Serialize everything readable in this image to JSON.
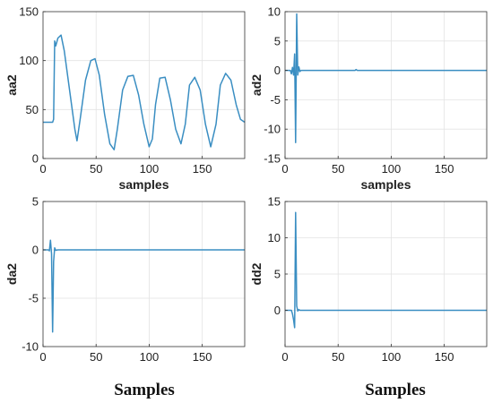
{
  "chart_data": [
    {
      "type": "line",
      "xlabel": "samples",
      "ylabel": "aa2",
      "xlim": [
        0,
        190
      ],
      "ylim": [
        0,
        150
      ],
      "xticks": [
        0,
        50,
        100,
        150
      ],
      "yticks": [
        0,
        50,
        100,
        150
      ],
      "grid": true,
      "color": "#3a8ec2",
      "x": [
        0,
        9,
        10,
        11,
        12,
        14,
        17,
        20,
        25,
        30,
        32,
        35,
        40,
        45,
        49,
        53,
        58,
        63,
        67,
        70,
        75,
        80,
        85,
        90,
        95,
        100,
        103,
        106,
        110,
        115,
        120,
        125,
        130,
        134,
        138,
        143,
        148,
        153,
        158,
        163,
        167,
        172,
        177,
        182,
        186,
        190
      ],
      "y": [
        37,
        37,
        40,
        120,
        115,
        123,
        126,
        110,
        70,
        30,
        18,
        40,
        80,
        100,
        102,
        85,
        45,
        15,
        9,
        30,
        70,
        84,
        85,
        65,
        35,
        12,
        20,
        55,
        82,
        83,
        60,
        30,
        15,
        35,
        75,
        83,
        70,
        35,
        12,
        35,
        75,
        87,
        80,
        55,
        40,
        37
      ]
    },
    {
      "type": "line",
      "xlabel": "samples",
      "ylabel": "ad2",
      "xlim": [
        0,
        190
      ],
      "ylim": [
        -15,
        10
      ],
      "xticks": [
        0,
        50,
        100,
        150
      ],
      "yticks": [
        -15,
        -10,
        -5,
        0,
        5,
        10
      ],
      "grid": true,
      "color": "#3a8ec2",
      "x": [
        0,
        5,
        6,
        7,
        8,
        9,
        10,
        11,
        12,
        13,
        14,
        15,
        20,
        25,
        66,
        67,
        68,
        190
      ],
      "y": [
        0,
        0,
        -0.6,
        0.5,
        -0.8,
        2.8,
        -12.3,
        9.6,
        -0.8,
        0.6,
        -0.2,
        0,
        0,
        0,
        0,
        0.15,
        0,
        0
      ]
    },
    {
      "type": "line",
      "xlabel": "",
      "ylabel": "da2",
      "xlim": [
        0,
        190
      ],
      "ylim": [
        -10,
        5
      ],
      "xticks": [
        0,
        50,
        100,
        150
      ],
      "yticks": [
        -10,
        -5,
        0,
        5
      ],
      "grid": true,
      "color": "#3a8ec2",
      "x": [
        0,
        5,
        6,
        7,
        8,
        9,
        10,
        11,
        12,
        14,
        190
      ],
      "y": [
        0,
        0,
        -0.1,
        1,
        -0.4,
        -8.5,
        -1.2,
        0.2,
        -0.05,
        0,
        0
      ]
    },
    {
      "type": "line",
      "xlabel": "",
      "ylabel": "dd2",
      "xlim": [
        0,
        190
      ],
      "ylim": [
        -5,
        15
      ],
      "xticks": [
        0,
        50,
        100,
        150
      ],
      "yticks": [
        0,
        5,
        10,
        15
      ],
      "grid": true,
      "color": "#3a8ec2",
      "x": [
        0,
        6,
        7,
        8,
        9,
        10,
        11,
        12,
        13,
        14,
        190
      ],
      "y": [
        0,
        0,
        -0.5,
        -1.3,
        -2.4,
        13.5,
        0.6,
        -0.1,
        0.1,
        0,
        0
      ]
    }
  ],
  "captions": [
    "Samples",
    "Samples"
  ]
}
